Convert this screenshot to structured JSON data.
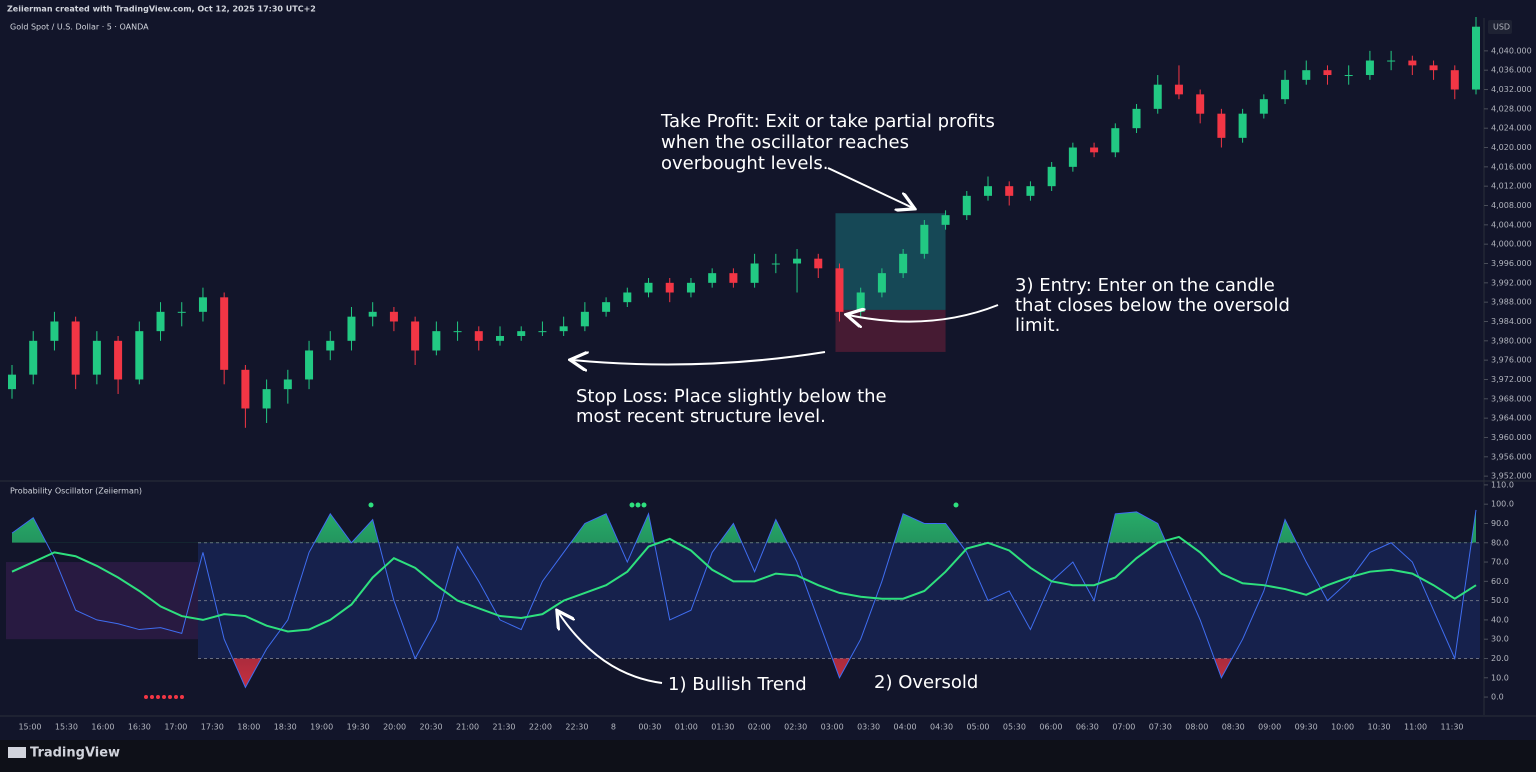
{
  "header": {
    "credit": "Zeiierman created with TradingView.com, Oct 12, 2025 17:30 UTC+2",
    "brand": "TradingView"
  },
  "chart_data": [
    {
      "type": "candlestick",
      "title": "Gold Spot / U.S. Dollar · 5 · OANDA",
      "currency": "USD",
      "up_color": "#22c983",
      "down_color": "#f23645",
      "ylim": [
        3951.2,
        4046.8
      ],
      "yticks": [
        {
          "value": 4040,
          "label": "4,040.000"
        },
        {
          "value": 4036,
          "label": "4,036.000"
        },
        {
          "value": 4032,
          "label": "4,032.000"
        },
        {
          "value": 4028,
          "label": "4,028.000"
        },
        {
          "value": 4024,
          "label": "4,024.000"
        },
        {
          "value": 4020,
          "label": "4,020.000"
        },
        {
          "value": 4016,
          "label": "4,016.000"
        },
        {
          "value": 4012,
          "label": "4,012.000"
        },
        {
          "value": 4008,
          "label": "4,008.000"
        },
        {
          "value": 4004,
          "label": "4,004.000"
        },
        {
          "value": 4000,
          "label": "4,000.000"
        },
        {
          "value": 3996,
          "label": "3,996.000"
        },
        {
          "value": 3992,
          "label": "3,992.000"
        },
        {
          "value": 3988,
          "label": "3,988.000"
        },
        {
          "value": 3984,
          "label": "3,984.000"
        },
        {
          "value": 3980,
          "label": "3,980.000"
        },
        {
          "value": 3976,
          "label": "3,976.000"
        },
        {
          "value": 3972,
          "label": "3,972.000"
        },
        {
          "value": 3968,
          "label": "3,968.000"
        },
        {
          "value": 3964,
          "label": "3,964.000"
        },
        {
          "value": 3960,
          "label": "3,960.000"
        },
        {
          "value": 3956,
          "label": "3,956.000"
        },
        {
          "value": 3952,
          "label": "3,952.000"
        }
      ],
      "candles": [
        [
          3970,
          3975,
          3968,
          3973
        ],
        [
          3973,
          3982,
          3971,
          3980
        ],
        [
          3980,
          3986,
          3978,
          3984
        ],
        [
          3984,
          3985,
          3970,
          3973
        ],
        [
          3973,
          3982,
          3971,
          3980
        ],
        [
          3980,
          3981,
          3969,
          3972
        ],
        [
          3972,
          3984,
          3971,
          3982
        ],
        [
          3982,
          3988,
          3980,
          3986
        ],
        [
          3986,
          3988,
          3983,
          3986
        ],
        [
          3986,
          3991,
          3984,
          3989
        ],
        [
          3989,
          3990,
          3971,
          3974
        ],
        [
          3974,
          3975,
          3962,
          3966
        ],
        [
          3966,
          3972,
          3963,
          3970
        ],
        [
          3970,
          3974,
          3967,
          3972
        ],
        [
          3972,
          3980,
          3970,
          3978
        ],
        [
          3978,
          3982,
          3976,
          3980
        ],
        [
          3980,
          3987,
          3978,
          3985
        ],
        [
          3985,
          3988,
          3983,
          3986
        ],
        [
          3986,
          3987,
          3982,
          3984
        ],
        [
          3984,
          3985,
          3975,
          3978
        ],
        [
          3978,
          3984,
          3977,
          3982
        ],
        [
          3982,
          3984,
          3980,
          3982
        ],
        [
          3982,
          3983,
          3978,
          3980
        ],
        [
          3980,
          3983,
          3979,
          3981
        ],
        [
          3981,
          3983,
          3980,
          3982
        ],
        [
          3982,
          3984,
          3981,
          3982
        ],
        [
          3982,
          3985,
          3981,
          3983
        ],
        [
          3983,
          3988,
          3982,
          3986
        ],
        [
          3986,
          3989,
          3985,
          3988
        ],
        [
          3988,
          3991,
          3987,
          3990
        ],
        [
          3990,
          3993,
          3989,
          3992
        ],
        [
          3992,
          3993,
          3988,
          3990
        ],
        [
          3990,
          3993,
          3989,
          3992
        ],
        [
          3992,
          3995,
          3991,
          3994
        ],
        [
          3994,
          3995,
          3991,
          3992
        ],
        [
          3992,
          3998,
          3991,
          3996
        ],
        [
          3996,
          3998,
          3994,
          3996
        ],
        [
          3996,
          3999,
          3990,
          3997
        ],
        [
          3997,
          3998,
          3993,
          3995
        ],
        [
          3995,
          3996,
          3984,
          3986
        ],
        [
          3986,
          3991,
          3985,
          3990
        ],
        [
          3990,
          3995,
          3989,
          3994
        ],
        [
          3994,
          3999,
          3993,
          3998
        ],
        [
          3998,
          4005,
          3997,
          4004
        ],
        [
          4004,
          4007,
          4003,
          4006
        ],
        [
          4006,
          4011,
          4005,
          4010
        ],
        [
          4010,
          4014,
          4009,
          4012
        ],
        [
          4012,
          4013,
          4008,
          4010
        ],
        [
          4010,
          4013,
          4009,
          4012
        ],
        [
          4012,
          4017,
          4011,
          4016
        ],
        [
          4016,
          4021,
          4015,
          4020
        ],
        [
          4020,
          4021,
          4018,
          4019
        ],
        [
          4019,
          4025,
          4018,
          4024
        ],
        [
          4024,
          4029,
          4023,
          4028
        ],
        [
          4028,
          4035,
          4027,
          4033
        ],
        [
          4033,
          4037,
          4030,
          4031
        ],
        [
          4031,
          4032,
          4025,
          4027
        ],
        [
          4027,
          4028,
          4020,
          4022
        ],
        [
          4022,
          4028,
          4021,
          4027
        ],
        [
          4027,
          4031,
          4026,
          4030
        ],
        [
          4030,
          4036,
          4029,
          4034
        ],
        [
          4034,
          4038,
          4033,
          4036
        ],
        [
          4036,
          4037,
          4033,
          4035
        ],
        [
          4035,
          4037,
          4033,
          4035
        ],
        [
          4035,
          4040,
          4034,
          4038
        ],
        [
          4038,
          4040,
          4036,
          4038
        ],
        [
          4038,
          4039,
          4035,
          4037
        ],
        [
          4037,
          4038,
          4034,
          4036
        ],
        [
          4036,
          4037,
          4030,
          4032
        ],
        [
          4032,
          4047,
          4031,
          4045
        ]
      ],
      "position": {
        "take_profit": 4006.4,
        "entry": 3986.4,
        "stop": 3977.7
      },
      "annotations": {
        "take_profit": [
          "Take Profit: Exit or take partial profits",
          "when the oscillator reaches",
          "overbought levels."
        ],
        "entry": [
          "3) Entry: Enter on the candle",
          "that closes below the oversold",
          "limit."
        ],
        "stop_loss": [
          "Stop Loss: Place slightly below the",
          "most recent structure level."
        ]
      }
    },
    {
      "type": "line",
      "title": "Probability Oscillator (Zeiierman)",
      "ylim": [
        -9.3,
        111.5
      ],
      "yticks": [
        {
          "value": 110,
          "label": "110.0"
        },
        {
          "value": 100,
          "label": "100.0"
        },
        {
          "value": 90,
          "label": "90.0"
        },
        {
          "value": 80,
          "label": "80.0"
        },
        {
          "value": 70,
          "label": "70.0"
        },
        {
          "value": 60,
          "label": "60.0"
        },
        {
          "value": 50,
          "label": "50.0"
        },
        {
          "value": 40,
          "label": "40.0"
        },
        {
          "value": 30,
          "label": "30.0"
        },
        {
          "value": 20,
          "label": "20.0"
        },
        {
          "value": 10,
          "label": "10.0"
        },
        {
          "value": 0,
          "label": "0.0"
        }
      ],
      "levels": [
        80,
        50,
        20
      ],
      "neutral_zone": [
        30,
        70
      ],
      "x_labels": [
        "15:00",
        "15:30",
        "16:00",
        "16:30",
        "17:00",
        "17:30",
        "18:00",
        "18:30",
        "19:00",
        "19:30",
        "20:00",
        "20:30",
        "21:00",
        "21:30",
        "22:00",
        "22:30",
        "8",
        "00:30",
        "01:00",
        "01:30",
        "02:00",
        "02:30",
        "03:00",
        "03:30",
        "04:00",
        "04:30",
        "05:00",
        "05:30",
        "06:00",
        "06:30",
        "07:00",
        "07:30",
        "08:00",
        "08:30",
        "09:00",
        "09:30",
        "10:00",
        "10:30",
        "11:00",
        "11:30"
      ],
      "series": [
        {
          "color": "#3f6df0",
          "values": [
            85,
            93,
            72,
            45,
            40,
            38,
            35,
            36,
            33,
            75,
            30,
            5,
            25,
            40,
            75,
            95,
            80,
            92,
            50,
            20,
            40,
            78,
            60,
            40,
            35,
            60,
            75,
            90,
            95,
            70,
            95,
            40,
            45,
            75,
            90,
            65,
            92,
            70,
            40,
            10,
            30,
            60,
            95,
            90,
            90,
            75,
            50,
            55,
            35,
            60,
            70,
            50,
            95,
            96,
            90,
            65,
            40,
            10,
            30,
            55,
            92,
            70,
            50,
            60,
            75,
            80,
            70,
            45,
            20,
            97
          ]
        },
        {
          "color": "#2ee07e",
          "values": [
            65,
            70,
            75,
            73,
            68,
            62,
            55,
            47,
            42,
            40,
            43,
            42,
            37,
            34,
            35,
            40,
            48,
            62,
            72,
            67,
            58,
            50,
            46,
            42,
            41,
            43,
            50,
            54,
            58,
            65,
            78,
            82,
            76,
            66,
            60,
            60,
            64,
            63,
            58,
            54,
            52,
            51,
            51,
            55,
            65,
            77,
            80,
            76,
            67,
            60,
            58,
            58,
            62,
            72,
            80,
            83,
            75,
            64,
            59,
            58,
            56,
            53,
            58,
            62,
            65,
            66,
            64,
            58,
            51,
            58
          ]
        }
      ],
      "annotations": {
        "trend": "1) Bullish Trend",
        "oversold": "2) Oversold"
      }
    }
  ]
}
